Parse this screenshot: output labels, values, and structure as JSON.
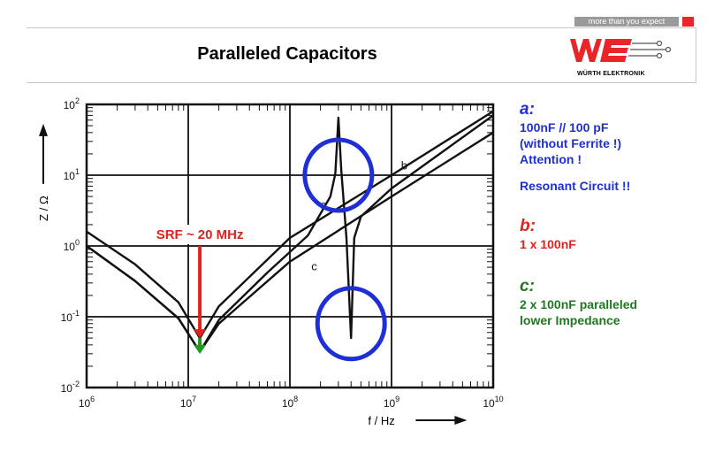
{
  "header": {
    "tagline": "more than you expect",
    "title": "Paralleled Capacitors",
    "logo_text": "WÜRTH ELEKTRONIK",
    "colors": {
      "brand_red": "#e8262a",
      "tag_gray": "#9a9a9a"
    }
  },
  "annotations": {
    "a": {
      "label": "a:",
      "line1": "100nF // 100 pF",
      "line2": "(without Ferrite !)",
      "line3": "Attention !",
      "line4": "Resonant Circuit !!",
      "color": "#1f2fd6"
    },
    "b": {
      "label": "b:",
      "line1": "1 x 100nF",
      "color": "#e1211b"
    },
    "c": {
      "label": "c:",
      "line1": "2 x 100nF paralleled",
      "line2": "lower Impedance",
      "color": "#1f7a1f"
    }
  },
  "chart_data": {
    "type": "line",
    "x_scale": "log",
    "y_scale": "log",
    "xlim": [
      1000000,
      10000000000
    ],
    "ylim": [
      0.01,
      100
    ],
    "xlabel": "f /  Hz",
    "ylabel": "Z / Ω",
    "x_ticks": [
      {
        "value": 1000000,
        "base": "10",
        "exp": "6"
      },
      {
        "value": 10000000,
        "base": "10",
        "exp": "7"
      },
      {
        "value": 100000000,
        "base": "10",
        "exp": "8"
      },
      {
        "value": 1000000000,
        "base": "10",
        "exp": "9"
      },
      {
        "value": 10000000000,
        "base": "10",
        "exp": "10"
      }
    ],
    "y_ticks": [
      {
        "value": 100,
        "base": "10",
        "exp": "2"
      },
      {
        "value": 10,
        "base": "10",
        "exp": "1"
      },
      {
        "value": 1,
        "base": "10",
        "exp": "0"
      },
      {
        "value": 0.1,
        "base": "10",
        "exp": "-1"
      },
      {
        "value": 0.01,
        "base": "10",
        "exp": "-2"
      }
    ],
    "grid": true,
    "series": [
      {
        "name": "a",
        "points": [
          [
            1000000,
            1.0
          ],
          [
            3000000,
            0.32
          ],
          [
            8000000,
            0.095
          ],
          [
            13000000,
            0.032
          ],
          [
            20000000,
            0.09
          ],
          [
            60000000,
            0.42
          ],
          [
            150000000,
            1.4
          ],
          [
            250000000,
            5.0
          ],
          [
            280000000,
            10.5
          ],
          [
            300000000,
            65
          ],
          [
            320000000,
            12
          ],
          [
            360000000,
            1.3
          ],
          [
            400000000,
            0.05
          ],
          [
            430000000,
            1.3
          ],
          [
            500000000,
            2.6
          ],
          [
            1000000000,
            6.5
          ],
          [
            10000000000,
            70
          ]
        ]
      },
      {
        "name": "b",
        "points": [
          [
            1000000,
            1.6
          ],
          [
            3000000,
            0.55
          ],
          [
            8000000,
            0.16
          ],
          [
            13000000,
            0.05
          ],
          [
            20000000,
            0.14
          ],
          [
            100000000,
            1.3
          ],
          [
            1000000000,
            10
          ],
          [
            10000000000,
            80
          ]
        ]
      },
      {
        "name": "c",
        "points": [
          [
            1000000,
            1.0
          ],
          [
            3000000,
            0.32
          ],
          [
            8000000,
            0.095
          ],
          [
            13000000,
            0.032
          ],
          [
            20000000,
            0.08
          ],
          [
            100000000,
            0.6
          ],
          [
            1000000000,
            5
          ],
          [
            10000000000,
            40
          ]
        ]
      }
    ],
    "annotations": [
      {
        "text": "SRF ~ 20 MHz",
        "x": 13000000
      }
    ],
    "highlight_circles": [
      {
        "x": 300000000,
        "y": 10
      },
      {
        "x": 400000000,
        "y": 0.08
      }
    ],
    "marker_arrows": [
      {
        "color": "#e1211b",
        "x": 13000000,
        "y_from": 1.0,
        "y_to": 0.05
      },
      {
        "color": "#1f9a1f",
        "x": 13000000,
        "y_from": 0.05,
        "y_to": 0.03
      }
    ]
  }
}
